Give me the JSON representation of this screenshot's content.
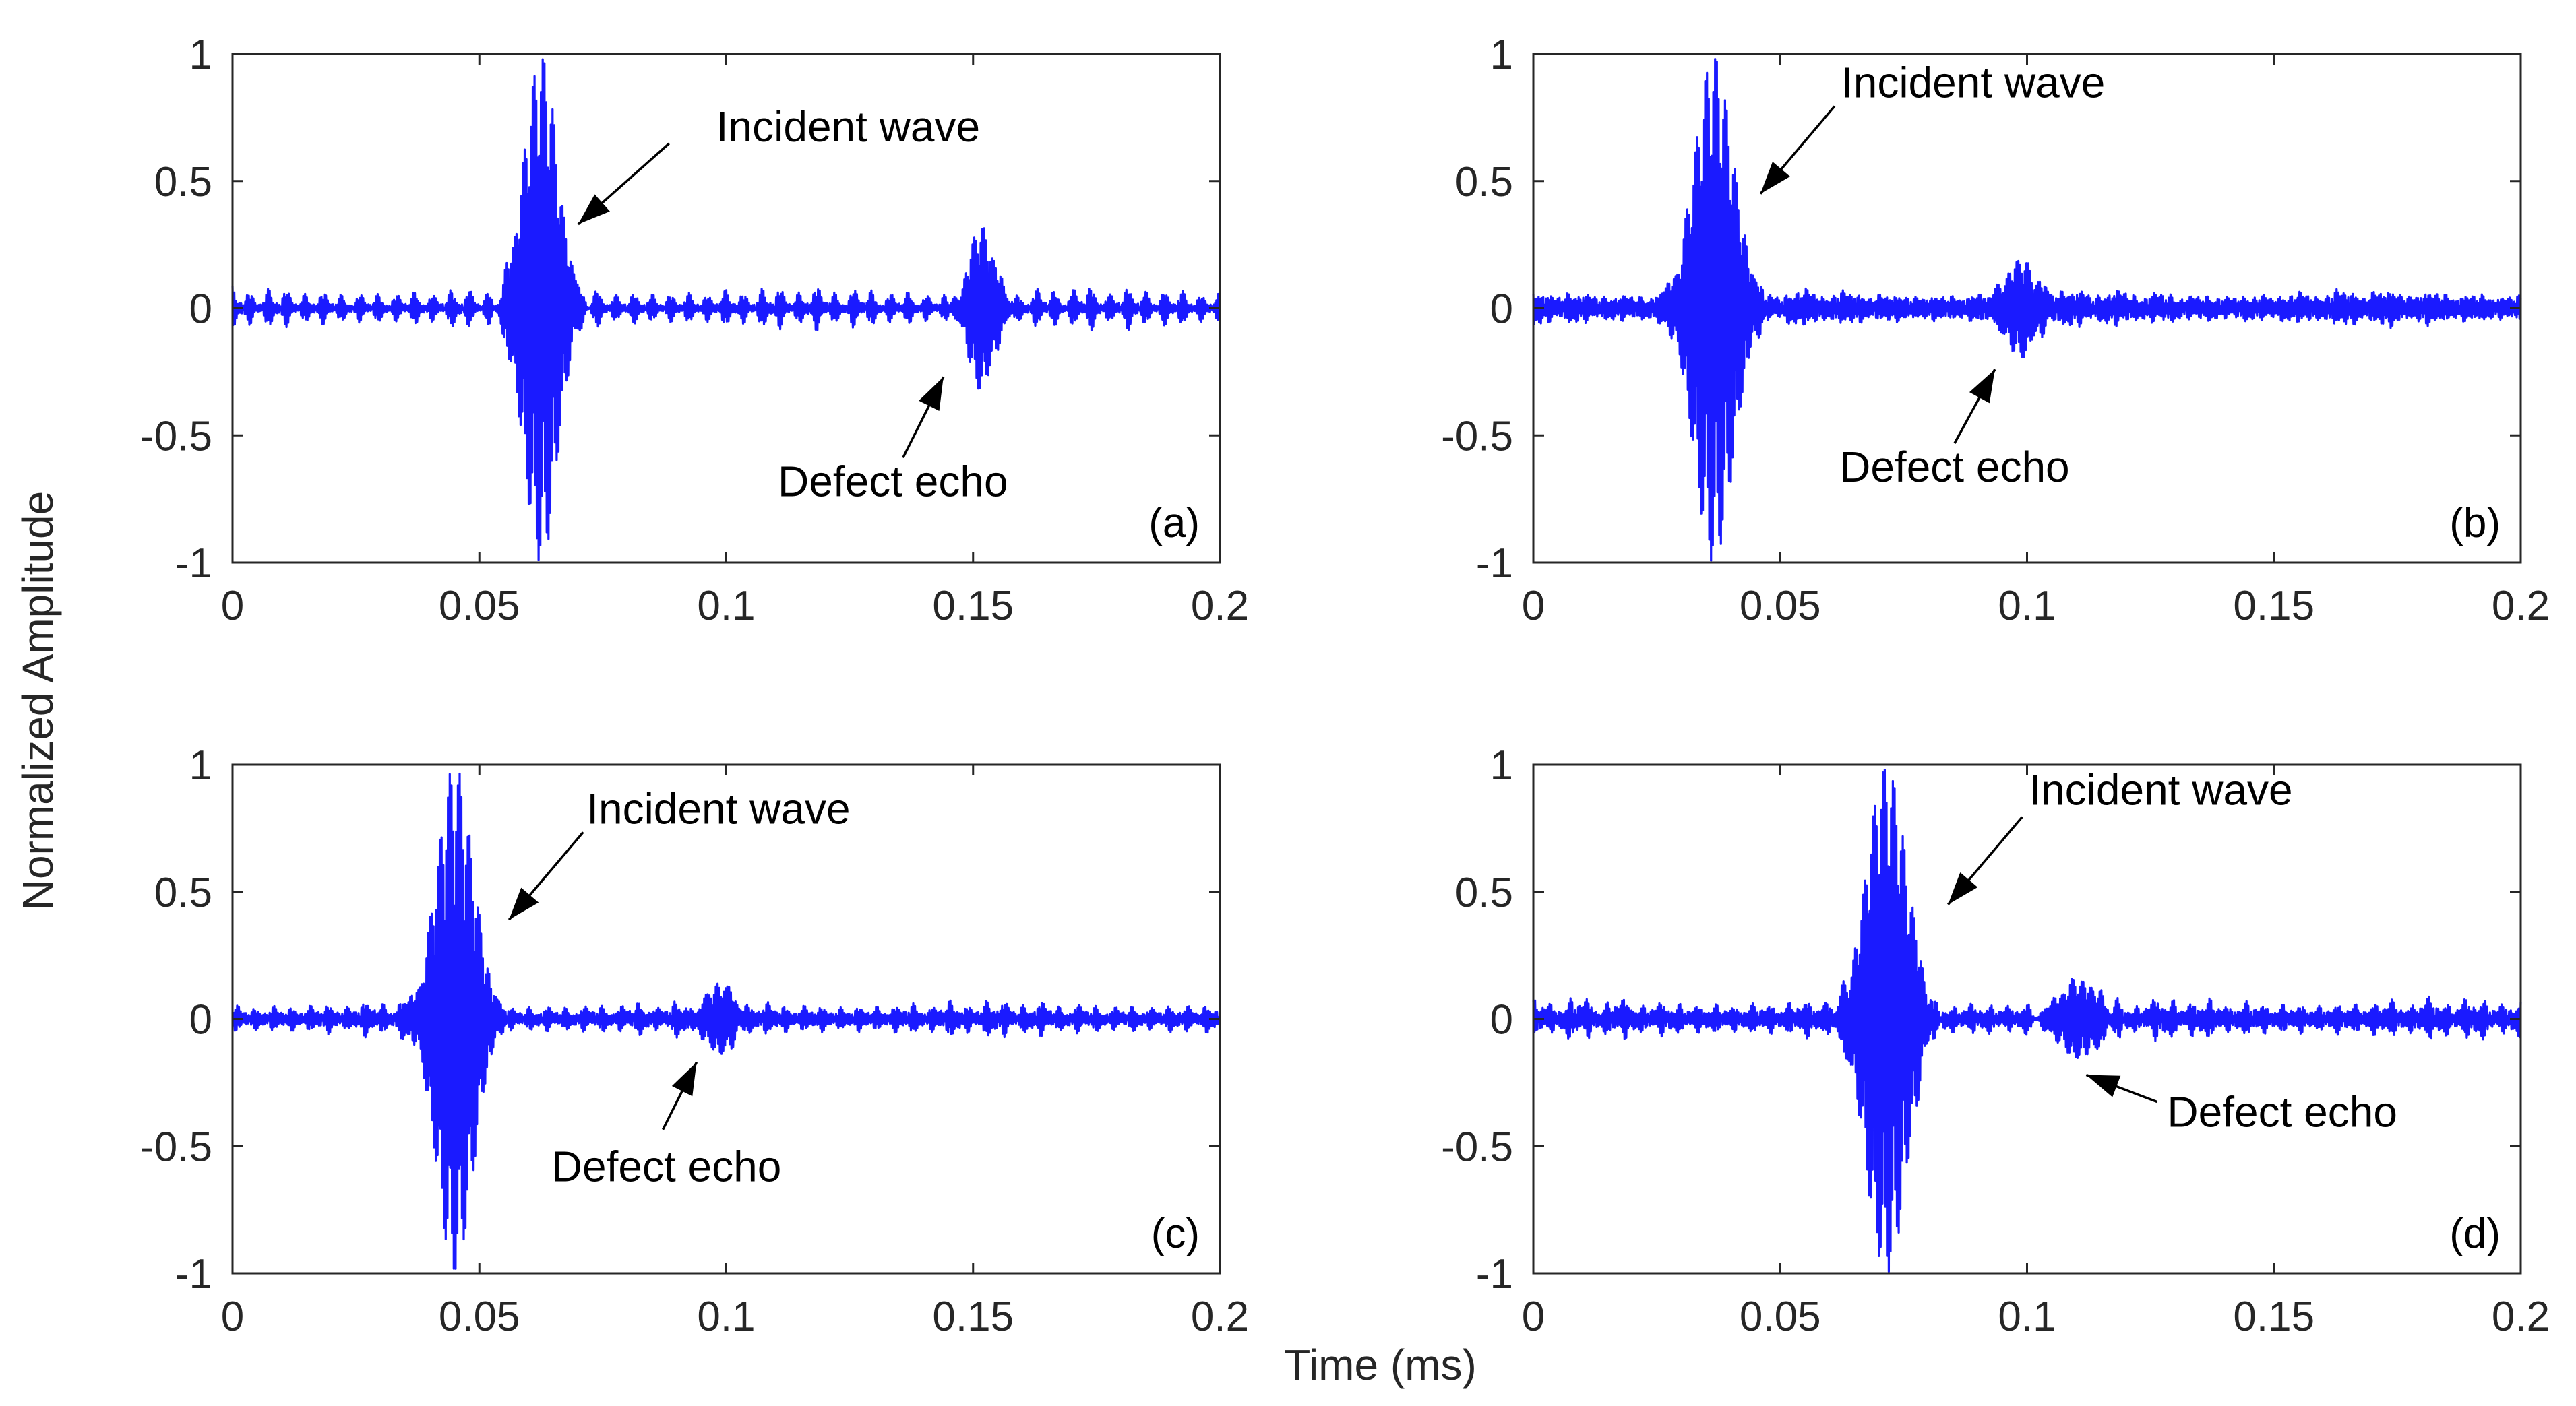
{
  "figure": {
    "ylabel": "Normalized Amplitude",
    "xlabel": "Time (ms)",
    "line_color": "#1a1aff"
  },
  "chart_data": [
    {
      "type": "line",
      "panel": "(a)",
      "xlim": [
        0,
        0.2
      ],
      "ylim": [
        -1,
        1
      ],
      "xticks": [
        "0",
        "0.05",
        "0.1",
        "0.15",
        "0.2"
      ],
      "yticks": [
        "1",
        "0.5",
        "0",
        "-0.5",
        "-1"
      ],
      "grid": false,
      "annotations": [
        {
          "text": "Incident wave",
          "at_x": 0.07,
          "at_y": 0.33
        },
        {
          "text": "Defect echo",
          "at_x": 0.144,
          "at_y": -0.27
        }
      ],
      "signal": {
        "pulse_center": 0.0625,
        "pulse_amplitude": 1.0,
        "pulse_width": 0.0048,
        "echo_center": 0.1515,
        "echo_amplitude": 0.32,
        "echo_width": 0.0036,
        "noise_amplitude": 0.09,
        "seed": 11
      }
    },
    {
      "type": "line",
      "panel": "(b)",
      "xlim": [
        0,
        0.2
      ],
      "ylim": [
        -1,
        1
      ],
      "xticks": [
        "0",
        "0.05",
        "0.1",
        "0.15",
        "0.2"
      ],
      "yticks": [
        "1",
        "0.5",
        "0",
        "-0.5",
        "-1"
      ],
      "grid": false,
      "annotations": [
        {
          "text": "Incident wave",
          "at_x": 0.046,
          "at_y": 0.45
        },
        {
          "text": "Defect echo",
          "at_x": 0.0935,
          "at_y": -0.24
        }
      ],
      "signal": {
        "pulse_center": 0.0365,
        "pulse_amplitude": 1.0,
        "pulse_width": 0.0055,
        "echo_center": 0.0985,
        "echo_amplitude": 0.2,
        "echo_width": 0.0045,
        "noise_amplitude": 0.1,
        "seed": 23
      }
    },
    {
      "type": "line",
      "panel": "(c)",
      "xlim": [
        0,
        0.2
      ],
      "ylim": [
        -1,
        1
      ],
      "xticks": [
        "0",
        "0.05",
        "0.1",
        "0.15",
        "0.2"
      ],
      "yticks": [
        "1",
        "0.5",
        "0",
        "-0.5",
        "-1"
      ],
      "grid": false,
      "annotations": [
        {
          "text": "Incident wave",
          "at_x": 0.056,
          "at_y": 0.39
        },
        {
          "text": "Defect echo",
          "at_x": 0.094,
          "at_y": -0.17
        }
      ],
      "signal": {
        "pulse_center": 0.045,
        "pulse_amplitude": 1.0,
        "pulse_width": 0.0052,
        "echo_center": 0.0985,
        "echo_amplitude": 0.15,
        "echo_width": 0.004,
        "noise_amplitude": 0.085,
        "seed": 37
      }
    },
    {
      "type": "line",
      "panel": "(d)",
      "xlim": [
        0,
        0.2
      ],
      "ylim": [
        -1,
        1
      ],
      "xticks": [
        "0",
        "0.05",
        "0.1",
        "0.15",
        "0.2"
      ],
      "yticks": [
        "1",
        "0.5",
        "0",
        "-0.5",
        "-1"
      ],
      "grid": false,
      "annotations": [
        {
          "text": "Incident wave",
          "at_x": 0.084,
          "at_y": 0.45
        },
        {
          "text": "Defect echo",
          "at_x": 0.112,
          "at_y": -0.22
        }
      ],
      "signal": {
        "pulse_center": 0.0715,
        "pulse_amplitude": 1.0,
        "pulse_width": 0.0058,
        "echo_center": 0.11,
        "echo_amplitude": 0.15,
        "echo_width": 0.006,
        "noise_amplitude": 0.1,
        "seed": 53
      }
    }
  ]
}
